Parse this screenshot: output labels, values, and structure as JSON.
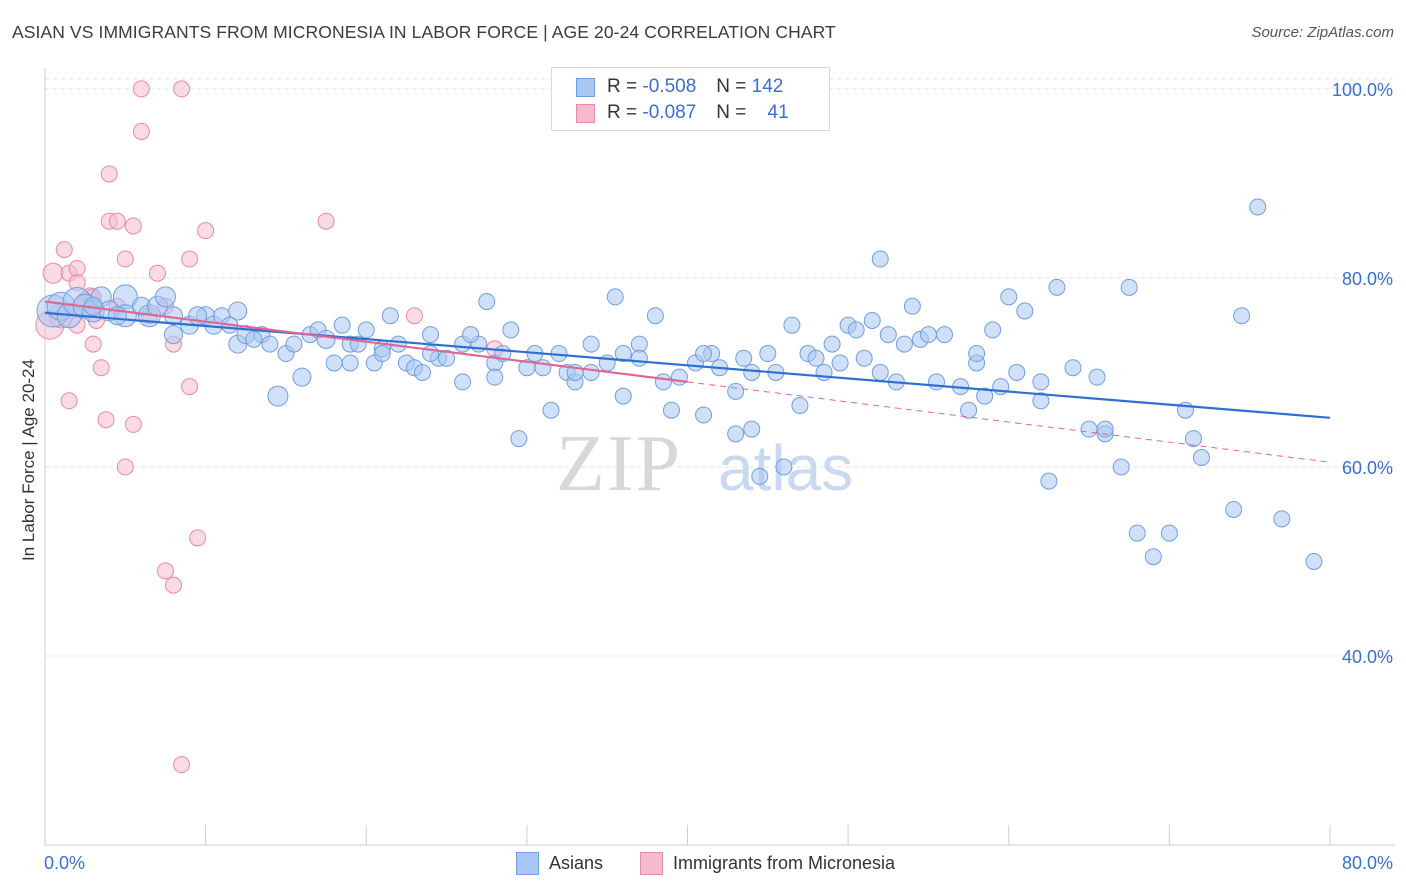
{
  "title": "ASIAN VS IMMIGRANTS FROM MICRONESIA IN LABOR FORCE | AGE 20-24 CORRELATION CHART",
  "source": "Source: ZipAtlas.com",
  "watermark": {
    "zip": "ZIP",
    "atlas": "atlas"
  },
  "legend": {
    "rows": [
      {
        "r_label": "R =",
        "r_value": "-0.508",
        "n_label": "N =",
        "n_value": "142"
      },
      {
        "r_label": "R =",
        "r_value": "-0.087",
        "n_label": "N =",
        "n_value": "41"
      }
    ]
  },
  "colors": {
    "asian_fill": "#a9c7f2",
    "asian_stroke": "#6f9fe0",
    "asian_line": "#2f6fd1",
    "micronesia_fill": "#f6bccd",
    "micronesia_stroke": "#e98aa8",
    "micronesia_line": "#e06592",
    "axis_label": "#3a6fd0",
    "grid": "#e2e2e2"
  },
  "chart_data": {
    "type": "scatter",
    "title": "ASIAN VS IMMIGRANTS FROM MICRONESIA IN LABOR FORCE | AGE 20-24 CORRELATION CHART",
    "xlabel": "",
    "ylabel": "In Labor Force | Age 20-24",
    "xlim": [
      0,
      80
    ],
    "ylim": [
      20,
      102
    ],
    "x_tick_labels": [
      "0.0%",
      "80.0%"
    ],
    "y_ticks": [
      40,
      60,
      80,
      100
    ],
    "y_tick_labels": [
      "40.0%",
      "60.0%",
      "80.0%",
      "100.0%"
    ],
    "grid": true,
    "legend_position": "bottom",
    "series": [
      {
        "name": "Asians",
        "r": -0.508,
        "n": 142,
        "trend": {
          "x": [
            0,
            80
          ],
          "y": [
            76.3,
            65.2
          ],
          "style": "solid"
        },
        "points": [
          [
            0.5,
            76.5,
            16
          ],
          [
            1,
            77,
            14
          ],
          [
            1.5,
            76,
            12
          ],
          [
            2,
            77.5,
            14
          ],
          [
            2.5,
            77,
            12
          ],
          [
            3,
            76.5,
            11
          ],
          [
            3.5,
            78,
            10
          ],
          [
            4,
            76.5,
            10
          ],
          [
            5,
            78,
            12
          ],
          [
            5,
            76,
            11
          ],
          [
            6,
            77,
            9
          ],
          [
            6.5,
            76,
            11
          ],
          [
            7,
            77,
            10
          ],
          [
            8,
            76,
            9
          ],
          [
            8,
            74,
            9
          ],
          [
            9,
            75,
            9
          ],
          [
            10,
            76,
            9
          ],
          [
            10.5,
            75,
            9
          ],
          [
            11,
            76,
            8
          ],
          [
            12,
            76.5,
            9
          ],
          [
            12,
            73,
            9
          ],
          [
            12.5,
            74,
            9
          ],
          [
            13.5,
            74,
            8
          ],
          [
            14,
            73,
            8
          ],
          [
            15,
            72,
            8
          ],
          [
            14.5,
            67.5,
            10
          ],
          [
            16,
            69.5,
            9
          ],
          [
            16.5,
            74,
            8
          ],
          [
            17,
            74.5,
            8
          ],
          [
            17.5,
            73.5,
            9
          ],
          [
            18,
            71,
            8
          ],
          [
            18.5,
            75,
            8
          ],
          [
            19,
            73,
            8
          ],
          [
            19.5,
            73,
            8
          ],
          [
            20,
            74.5,
            8
          ],
          [
            20.5,
            71,
            8
          ],
          [
            21,
            72.5,
            8
          ],
          [
            21.5,
            76,
            8
          ],
          [
            22,
            73,
            8
          ],
          [
            22.5,
            71,
            8
          ],
          [
            23,
            70.5,
            8
          ],
          [
            23.5,
            70,
            8
          ],
          [
            24,
            74,
            8
          ],
          [
            24.5,
            71.5,
            8
          ],
          [
            25,
            71.5,
            8
          ],
          [
            26,
            69,
            8
          ],
          [
            26,
            73,
            8
          ],
          [
            27,
            73,
            8
          ],
          [
            27.5,
            77.5,
            8
          ],
          [
            28,
            71,
            8
          ],
          [
            28.5,
            72,
            8
          ],
          [
            29,
            74.5,
            8
          ],
          [
            29.5,
            63,
            8
          ],
          [
            30,
            70.5,
            8
          ],
          [
            31,
            70.5,
            8
          ],
          [
            31.5,
            66,
            8
          ],
          [
            32,
            72,
            8
          ],
          [
            32.5,
            70,
            8
          ],
          [
            33,
            69,
            8
          ],
          [
            34,
            73,
            8
          ],
          [
            34,
            70,
            8
          ],
          [
            35,
            71,
            8
          ],
          [
            35.5,
            78,
            8
          ],
          [
            36,
            67.5,
            8
          ],
          [
            37,
            73,
            8
          ],
          [
            37,
            71.5,
            8
          ],
          [
            38,
            76,
            8
          ],
          [
            38.5,
            69,
            8
          ],
          [
            39,
            66,
            8
          ],
          [
            39.5,
            69.5,
            8
          ],
          [
            40.5,
            71,
            8
          ],
          [
            41,
            65.5,
            8
          ],
          [
            41.5,
            72,
            8
          ],
          [
            42,
            70.5,
            8
          ],
          [
            43,
            68,
            8
          ],
          [
            43.5,
            71.5,
            8
          ],
          [
            44,
            64,
            8
          ],
          [
            44.5,
            59,
            8
          ],
          [
            45,
            72,
            8
          ],
          [
            45.5,
            70,
            8
          ],
          [
            46,
            60,
            8
          ],
          [
            46.5,
            75,
            8
          ],
          [
            47,
            66.5,
            8
          ],
          [
            47.5,
            72,
            8
          ],
          [
            48,
            71.5,
            8
          ],
          [
            48.5,
            70,
            8
          ],
          [
            49,
            73,
            8
          ],
          [
            49.5,
            71,
            8
          ],
          [
            50,
            75,
            8
          ],
          [
            50.5,
            74.5,
            8
          ],
          [
            51,
            71.5,
            8
          ],
          [
            51.5,
            75.5,
            8
          ],
          [
            52,
            82,
            8
          ],
          [
            52.5,
            74,
            8
          ],
          [
            53,
            69,
            8
          ],
          [
            53.5,
            73,
            8
          ],
          [
            54,
            77,
            8
          ],
          [
            54.5,
            73.5,
            8
          ],
          [
            55,
            74,
            8
          ],
          [
            55.5,
            69,
            8
          ],
          [
            56,
            74,
            8
          ],
          [
            57,
            68.5,
            8
          ],
          [
            57.5,
            66,
            8
          ],
          [
            58,
            71,
            8
          ],
          [
            58.5,
            67.5,
            8
          ],
          [
            59,
            74.5,
            8
          ],
          [
            59.5,
            68.5,
            8
          ],
          [
            60,
            78,
            8
          ],
          [
            60.5,
            70,
            8
          ],
          [
            61,
            76.5,
            8
          ],
          [
            62,
            67,
            8
          ],
          [
            62.5,
            58.5,
            8
          ],
          [
            63,
            79,
            8
          ],
          [
            64,
            70.5,
            8
          ],
          [
            65,
            64,
            8
          ],
          [
            65.5,
            69.5,
            8
          ],
          [
            66,
            63.5,
            8
          ],
          [
            67,
            60,
            8
          ],
          [
            67.5,
            79,
            8
          ],
          [
            68,
            53,
            8
          ],
          [
            69,
            50.5,
            8
          ],
          [
            70,
            53,
            8
          ],
          [
            71,
            66,
            8
          ],
          [
            71.5,
            63,
            8
          ],
          [
            72,
            61,
            8
          ],
          [
            74,
            55.5,
            8
          ],
          [
            74.5,
            76,
            8
          ],
          [
            75.5,
            87.5,
            8
          ],
          [
            77,
            54.5,
            8
          ],
          [
            79,
            50,
            8
          ],
          [
            44,
            70,
            8
          ],
          [
            33,
            70,
            8
          ],
          [
            28,
            69.5,
            8
          ],
          [
            36,
            72,
            8
          ],
          [
            41,
            72,
            8
          ],
          [
            52,
            70,
            8
          ],
          [
            58,
            72,
            8
          ],
          [
            62,
            69,
            8
          ],
          [
            66,
            64,
            8
          ],
          [
            43,
            63.5,
            8
          ],
          [
            3,
            77,
            9
          ],
          [
            4.5,
            76,
            9
          ],
          [
            7.5,
            78,
            10
          ],
          [
            9.5,
            76,
            9
          ],
          [
            11.5,
            75,
            8
          ],
          [
            13,
            73.5,
            8
          ],
          [
            15.5,
            73,
            8
          ],
          [
            19,
            71,
            8
          ],
          [
            21,
            72,
            8
          ],
          [
            24,
            72,
            8
          ],
          [
            26.5,
            74,
            8
          ],
          [
            30.5,
            72,
            8
          ]
        ]
      },
      {
        "name": "Immigrants from Micronesia",
        "r": -0.087,
        "n": 41,
        "trend": {
          "x": [
            0,
            40,
            80
          ],
          "y": [
            77.5,
            69,
            60.5
          ],
          "solid_until": 40,
          "style": "solid-then-dashed"
        },
        "points": [
          [
            0.3,
            75,
            14
          ],
          [
            0.5,
            80.5,
            10
          ],
          [
            1,
            76,
            12
          ],
          [
            1.2,
            83,
            8
          ],
          [
            1.5,
            80.5,
            8
          ],
          [
            2,
            81,
            8
          ],
          [
            2,
            79.5,
            8
          ],
          [
            2,
            75,
            8
          ],
          [
            2.5,
            77.5,
            9
          ],
          [
            2.8,
            78,
            9
          ],
          [
            3,
            73,
            8
          ],
          [
            3,
            78,
            8
          ],
          [
            3.2,
            75.5,
            8
          ],
          [
            3.5,
            70.5,
            8
          ],
          [
            4,
            91,
            8
          ],
          [
            4,
            86,
            8
          ],
          [
            4.5,
            77,
            8
          ],
          [
            4.5,
            86,
            8
          ],
          [
            5,
            82,
            8
          ],
          [
            5,
            60,
            8
          ],
          [
            5.5,
            64.5,
            8
          ],
          [
            5.5,
            85.5,
            8
          ],
          [
            6,
            95.5,
            8
          ],
          [
            6,
            100,
            8
          ],
          [
            6.5,
            76,
            8
          ],
          [
            7,
            80.5,
            8
          ],
          [
            7.5,
            49,
            8
          ],
          [
            7.5,
            77,
            8
          ],
          [
            8,
            47.5,
            8
          ],
          [
            8,
            73,
            8
          ],
          [
            8.5,
            100,
            8
          ],
          [
            8.5,
            28.5,
            8
          ],
          [
            9,
            68.5,
            8
          ],
          [
            9,
            82,
            8
          ],
          [
            9.5,
            52.5,
            8
          ],
          [
            10,
            85,
            8
          ],
          [
            17.5,
            86,
            8
          ],
          [
            23,
            76,
            8
          ],
          [
            28,
            72.5,
            8
          ],
          [
            1.5,
            67,
            8
          ],
          [
            3.8,
            65,
            8
          ]
        ]
      }
    ]
  },
  "bottom_legend": {
    "asians": "Asians",
    "micronesia": "Immigrants from Micronesia"
  }
}
